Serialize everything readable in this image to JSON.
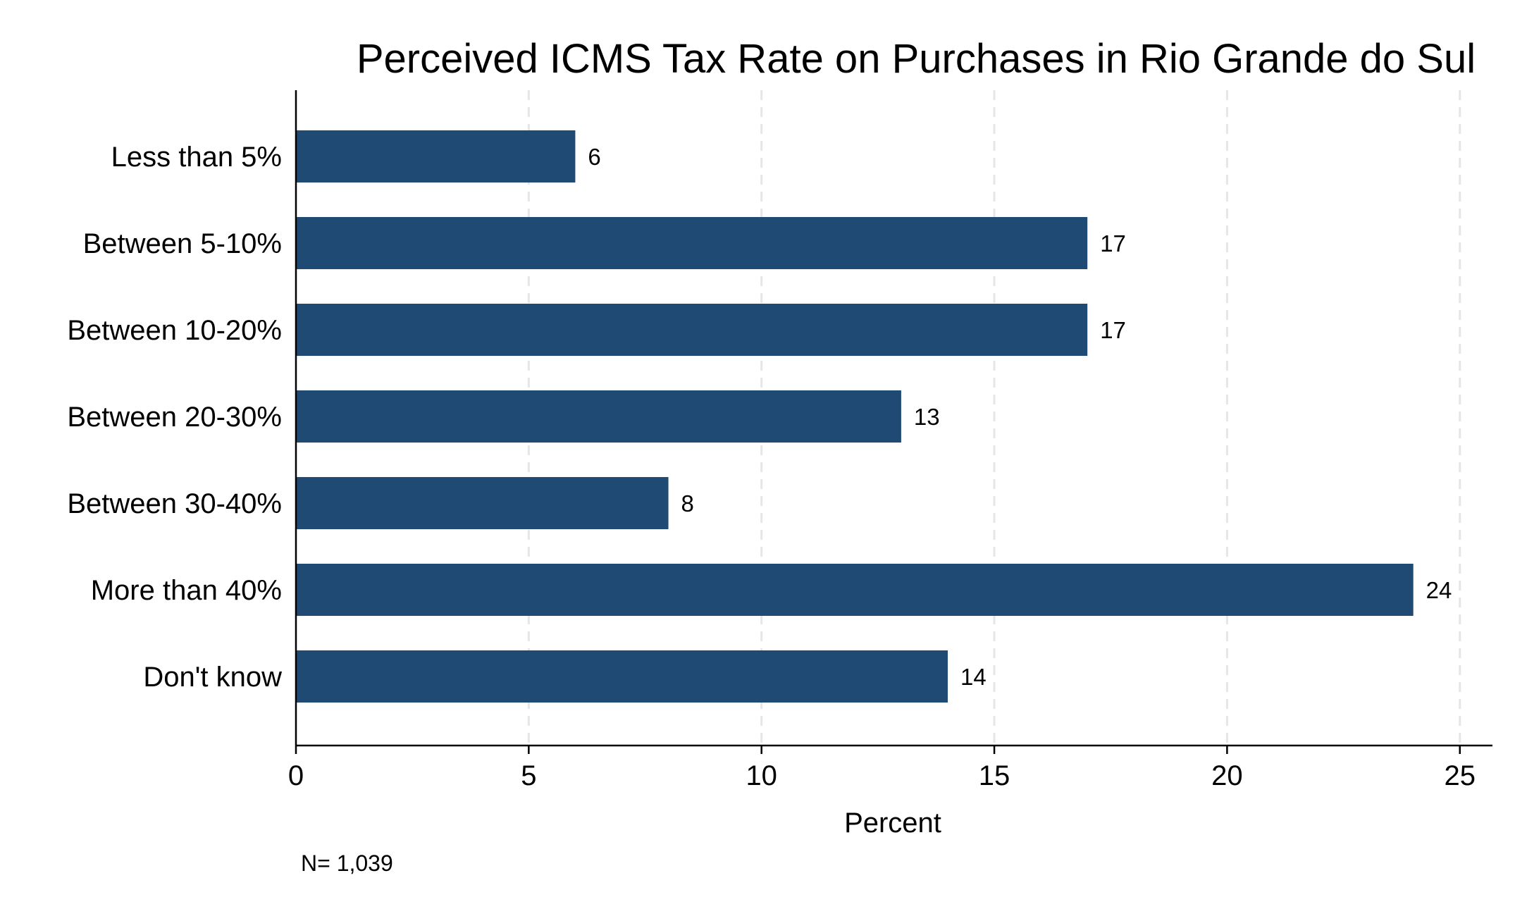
{
  "chart_data": {
    "type": "bar",
    "orientation": "horizontal",
    "title": "Perceived ICMS Tax Rate on Purchases in Rio Grande do Sul",
    "categories": [
      "Less than 5%",
      "Between 5-10%",
      "Between 10-20%",
      "Between 20-30%",
      "Between 30-40%",
      "More than 40%",
      "Don't know"
    ],
    "values": [
      6,
      17,
      17,
      13,
      8,
      24,
      14
    ],
    "data_labels": [
      "6",
      "17",
      "17",
      "13",
      "8",
      "24",
      "14"
    ],
    "xlabel": "Percent",
    "ylabel": "",
    "xlim": [
      0,
      25.7
    ],
    "xticks": [
      0,
      5,
      10,
      15,
      20,
      25
    ],
    "xtick_labels": [
      "0",
      "5",
      "10",
      "15",
      "20",
      "25"
    ],
    "grid": "vertical dashed",
    "bar_color": "#1f4a73",
    "note": "N= 1,039"
  }
}
